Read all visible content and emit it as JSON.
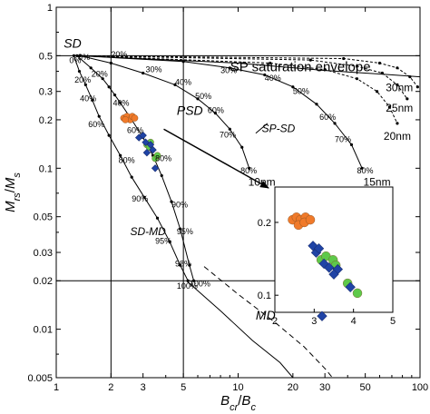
{
  "chart_data": {
    "type": "scatter",
    "xlabel": "B_cr/B_c",
    "ylabel": "M_rs/M_s",
    "x_scale": "log",
    "y_scale": "log",
    "xlim": [
      1,
      100
    ],
    "ylim": [
      0.005,
      1
    ],
    "x_ticks": [
      "1",
      "2",
      "3",
      "5",
      "10",
      "20",
      "30",
      "50",
      "100"
    ],
    "y_ticks": [
      "0.005",
      "0.01",
      "0.02",
      "0.03",
      "0.05",
      "0.1",
      "0.2",
      "0.3",
      "0.5",
      "1"
    ],
    "region_lines": {
      "x": [
        2,
        5
      ],
      "y": [
        0.5,
        0.02
      ]
    },
    "region_labels": [
      {
        "text": "SD",
        "x": 1.1,
        "y": 0.56
      },
      {
        "text": "PSD",
        "x": 4.6,
        "y": 0.215
      },
      {
        "text": "MD",
        "x": 12.5,
        "y": 0.0115
      },
      {
        "text": "SP-SD",
        "x": 13.5,
        "y": 0.168
      },
      {
        "text": "SD-MD",
        "x": 2.55,
        "y": 0.0385
      }
    ],
    "envelope_label": {
      "text": "SP saturation envelope",
      "x": 22,
      "y": 0.4
    },
    "sd_md_mixing_lines": [
      {
        "points": [
          [
            1.25,
            0.5
          ],
          [
            1.34,
            0.4
          ],
          [
            1.45,
            0.33
          ],
          [
            1.58,
            0.265
          ],
          [
            1.72,
            0.21
          ],
          [
            1.95,
            0.16
          ],
          [
            2.25,
            0.12
          ],
          [
            2.6,
            0.088
          ],
          [
            3.05,
            0.066
          ],
          [
            3.6,
            0.049
          ],
          [
            4.2,
            0.035
          ],
          [
            4.8,
            0.025
          ],
          [
            5.3,
            0.02
          ]
        ],
        "labels": [
          {
            "text": "0%",
            "x": 1.18,
            "y": 0.45
          },
          {
            "text": "20%",
            "x": 1.26,
            "y": 0.34
          },
          {
            "text": "40%",
            "x": 1.35,
            "y": 0.26
          },
          {
            "text": "60%",
            "x": 1.5,
            "y": 0.18
          },
          {
            "text": "80%",
            "x": 2.2,
            "y": 0.108
          },
          {
            "text": "90%",
            "x": 2.6,
            "y": 0.062
          },
          {
            "text": "95%",
            "x": 3.5,
            "y": 0.034
          },
          {
            "text": "98%",
            "x": 4.5,
            "y": 0.0245
          },
          {
            "text": "100%",
            "x": 4.6,
            "y": 0.0178
          }
        ]
      },
      {
        "points": [
          [
            1.3,
            0.5
          ],
          [
            1.55,
            0.42
          ],
          [
            1.8,
            0.36
          ],
          [
            1.95,
            0.32
          ],
          [
            2.1,
            0.285
          ],
          [
            2.25,
            0.255
          ],
          [
            2.6,
            0.2
          ],
          [
            3.0,
            0.155
          ],
          [
            3.4,
            0.12
          ],
          [
            3.8,
            0.09
          ],
          [
            4.3,
            0.062
          ],
          [
            4.8,
            0.042
          ],
          [
            5.4,
            0.025
          ],
          [
            5.7,
            0.02
          ]
        ],
        "labels": [
          {
            "text": "0%",
            "x": 1.32,
            "y": 0.47
          },
          {
            "text": "20%",
            "x": 1.56,
            "y": 0.37
          },
          {
            "text": "40%",
            "x": 2.05,
            "y": 0.245
          },
          {
            "text": "60%",
            "x": 2.45,
            "y": 0.165
          },
          {
            "text": "80%",
            "x": 3.5,
            "y": 0.111
          },
          {
            "text": "90%",
            "x": 4.3,
            "y": 0.057
          },
          {
            "text": "95%",
            "x": 4.6,
            "y": 0.039
          },
          {
            "text": "100%",
            "x": 5.4,
            "y": 0.0185
          }
        ]
      }
    ],
    "sp_sd_mixing_lines": [
      {
        "size": "10nm",
        "label_x": 13.5,
        "label_y": 0.078,
        "points": [
          [
            1.35,
            0.5
          ],
          [
            2.0,
            0.45
          ],
          [
            3.0,
            0.39
          ],
          [
            4.5,
            0.33
          ],
          [
            6.0,
            0.27
          ],
          [
            7.5,
            0.22
          ],
          [
            9.0,
            0.175
          ],
          [
            10.5,
            0.135
          ],
          [
            11.5,
            0.1
          ]
        ],
        "labels": [
          {
            "text": "20%",
            "x": 2.0,
            "y": 0.49
          },
          {
            "text": "30%",
            "x": 3.1,
            "y": 0.395
          },
          {
            "text": "40%",
            "x": 4.5,
            "y": 0.33
          },
          {
            "text": "50%",
            "x": 5.8,
            "y": 0.27
          },
          {
            "text": "60%",
            "x": 6.8,
            "y": 0.22
          },
          {
            "text": "70%",
            "x": 7.9,
            "y": 0.155
          },
          {
            "text": "80%",
            "x": 10.3,
            "y": 0.093
          }
        ]
      },
      {
        "size": "15nm",
        "label_x": 58,
        "label_y": 0.078,
        "points": [
          [
            1.35,
            0.5
          ],
          [
            5.0,
            0.46
          ],
          [
            9.0,
            0.42
          ],
          [
            14.0,
            0.38
          ],
          [
            20.0,
            0.32
          ],
          [
            27.0,
            0.25
          ],
          [
            34.0,
            0.19
          ],
          [
            42.0,
            0.14
          ],
          [
            48.0,
            0.1
          ]
        ],
        "labels": [
          {
            "text": "30%",
            "x": 8.0,
            "y": 0.39
          },
          {
            "text": "40%",
            "x": 14.0,
            "y": 0.35
          },
          {
            "text": "50%",
            "x": 20.0,
            "y": 0.29
          },
          {
            "text": "60%",
            "x": 28.0,
            "y": 0.2
          },
          {
            "text": "70%",
            "x": 34.0,
            "y": 0.145
          },
          {
            "text": "80%",
            "x": 45.0,
            "y": 0.093
          }
        ]
      },
      {
        "size": "20nm",
        "label_x": 75,
        "label_y": 0.15,
        "points": [
          [
            1.35,
            0.5
          ],
          [
            15.0,
            0.45
          ],
          [
            30.0,
            0.41
          ],
          [
            45.0,
            0.36
          ],
          [
            58.0,
            0.3
          ],
          [
            68.0,
            0.24
          ],
          [
            75.0,
            0.19
          ]
        ]
      },
      {
        "size": "25nm",
        "label_x": 77,
        "label_y": 0.225,
        "points": [
          [
            1.35,
            0.5
          ],
          [
            25.0,
            0.47
          ],
          [
            45.0,
            0.43
          ],
          [
            62.0,
            0.39
          ],
          [
            75.0,
            0.33
          ],
          [
            85.0,
            0.27
          ]
        ]
      },
      {
        "size": "30nm",
        "label_x": 77,
        "label_y": 0.3,
        "points": [
          [
            1.35,
            0.5
          ],
          [
            38.0,
            0.48
          ],
          [
            60.0,
            0.45
          ],
          [
            75.0,
            0.42
          ],
          [
            88.0,
            0.37
          ],
          [
            97.0,
            0.32
          ]
        ]
      }
    ],
    "sp_saturation_envelope": [
      [
        1.35,
        0.5
      ],
      [
        10.0,
        0.45
      ],
      [
        30.0,
        0.405
      ],
      [
        60.0,
        0.385
      ],
      [
        100.0,
        0.37
      ]
    ],
    "md_line": [
      [
        5.2,
        0.02
      ],
      [
        8.0,
        0.013
      ],
      [
        12.0,
        0.0085
      ],
      [
        17.0,
        0.0062
      ],
      [
        20.0,
        0.005
      ]
    ],
    "md_dashed_line": [
      [
        6.5,
        0.0245
      ],
      [
        10.0,
        0.0165
      ],
      [
        16.0,
        0.011
      ],
      [
        23.0,
        0.0078
      ],
      [
        30.0,
        0.0057
      ],
      [
        33.0,
        0.005
      ]
    ],
    "series": [
      {
        "name": "orange",
        "color": "#f07a2a",
        "marker": "circle",
        "points": [
          [
            2.35,
            0.205
          ],
          [
            2.45,
            0.21
          ],
          [
            2.55,
            0.2
          ],
          [
            2.62,
            0.21
          ],
          [
            2.4,
            0.2
          ],
          [
            2.7,
            0.205
          ]
        ]
      },
      {
        "name": "green",
        "color": "#5ec94a",
        "marker": "circle",
        "points": [
          [
            3.15,
            0.14
          ],
          [
            3.3,
            0.145
          ],
          [
            3.5,
            0.115
          ],
          [
            3.6,
            0.12
          ],
          [
            3.25,
            0.135
          ]
        ]
      },
      {
        "name": "blue",
        "color": "#1f43a5",
        "marker": "diamond",
        "points": [
          [
            2.85,
            0.155
          ],
          [
            3.0,
            0.16
          ],
          [
            3.1,
            0.145
          ],
          [
            3.3,
            0.14
          ],
          [
            3.15,
            0.125
          ],
          [
            3.4,
            0.13
          ],
          [
            3.5,
            0.1
          ]
        ]
      }
    ],
    "inset": {
      "x_ticks": [
        "2",
        "3",
        "4",
        "5"
      ],
      "y_ticks": [
        "0.1",
        "0.2"
      ],
      "xlim": [
        2,
        5
      ],
      "ylim": [
        0.085,
        0.28
      ],
      "x_scale": "linear",
      "y_scale": "log",
      "series": [
        {
          "name": "orange",
          "color": "#f07a2a",
          "marker": "circle",
          "points": [
            [
              2.45,
              0.205
            ],
            [
              2.55,
              0.21
            ],
            [
              2.65,
              0.205
            ],
            [
              2.78,
              0.21
            ],
            [
              2.6,
              0.195
            ],
            [
              2.75,
              0.2
            ],
            [
              2.9,
              0.205
            ]
          ]
        },
        {
          "name": "green",
          "color": "#5ec94a",
          "marker": "circle",
          "points": [
            [
              3.18,
              0.14
            ],
            [
              3.3,
              0.145
            ],
            [
              3.48,
              0.14
            ],
            [
              3.55,
              0.133
            ],
            [
              3.85,
              0.112
            ],
            [
              4.1,
              0.102
            ]
          ]
        },
        {
          "name": "blue",
          "color": "#1f43a5",
          "marker": "diamond",
          "points": [
            [
              2.97,
              0.16
            ],
            [
              3.05,
              0.15
            ],
            [
              3.12,
              0.156
            ],
            [
              3.25,
              0.135
            ],
            [
              3.38,
              0.13
            ],
            [
              3.6,
              0.128
            ],
            [
              3.92,
              0.108
            ],
            [
              3.5,
              0.122
            ],
            [
              3.2,
              0.082
            ]
          ]
        }
      ]
    }
  }
}
